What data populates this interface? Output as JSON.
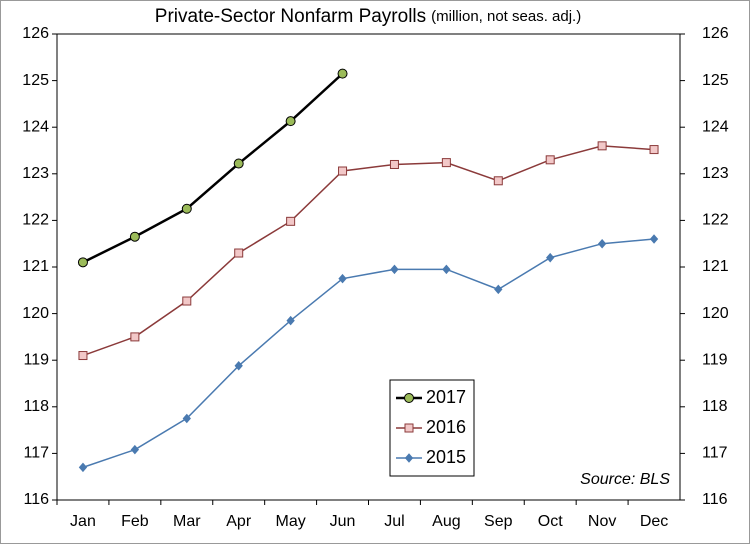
{
  "chart_data": {
    "type": "line",
    "title": "Private-Sector Nonfarm Payrolls",
    "subtitle": "(million, not seas. adj.)",
    "annotation": "Source: BLS",
    "categories": [
      "Jan",
      "Feb",
      "Mar",
      "Apr",
      "May",
      "Jun",
      "Jul",
      "Aug",
      "Sep",
      "Oct",
      "Nov",
      "Dec"
    ],
    "series": [
      {
        "name": "2017",
        "color": "#000000",
        "marker": "circle",
        "marker_color": "#9bbb59",
        "values": [
          121.1,
          121.65,
          122.25,
          123.22,
          124.13,
          125.15,
          null,
          null,
          null,
          null,
          null,
          null
        ]
      },
      {
        "name": "2016",
        "color": "#8b3a3a",
        "marker": "square",
        "marker_color": "#f2c8c8",
        "values": [
          119.1,
          119.5,
          120.27,
          121.3,
          121.98,
          123.06,
          123.2,
          123.24,
          122.85,
          123.3,
          123.6,
          123.52
        ]
      },
      {
        "name": "2015",
        "color": "#4a7ab0",
        "marker": "diamond",
        "marker_color": "#4a7ab0",
        "values": [
          116.7,
          117.08,
          117.75,
          118.88,
          119.85,
          120.75,
          120.95,
          120.95,
          120.52,
          121.2,
          121.5,
          121.6
        ]
      }
    ],
    "ylim": [
      116,
      126
    ],
    "yticks": [
      116,
      117,
      118,
      119,
      120,
      121,
      122,
      123,
      124,
      125,
      126
    ],
    "y2lim": [
      116,
      126
    ],
    "y2ticks": [
      116,
      117,
      118,
      119,
      120,
      121,
      122,
      123,
      124,
      125,
      126
    ],
    "grid": false
  }
}
